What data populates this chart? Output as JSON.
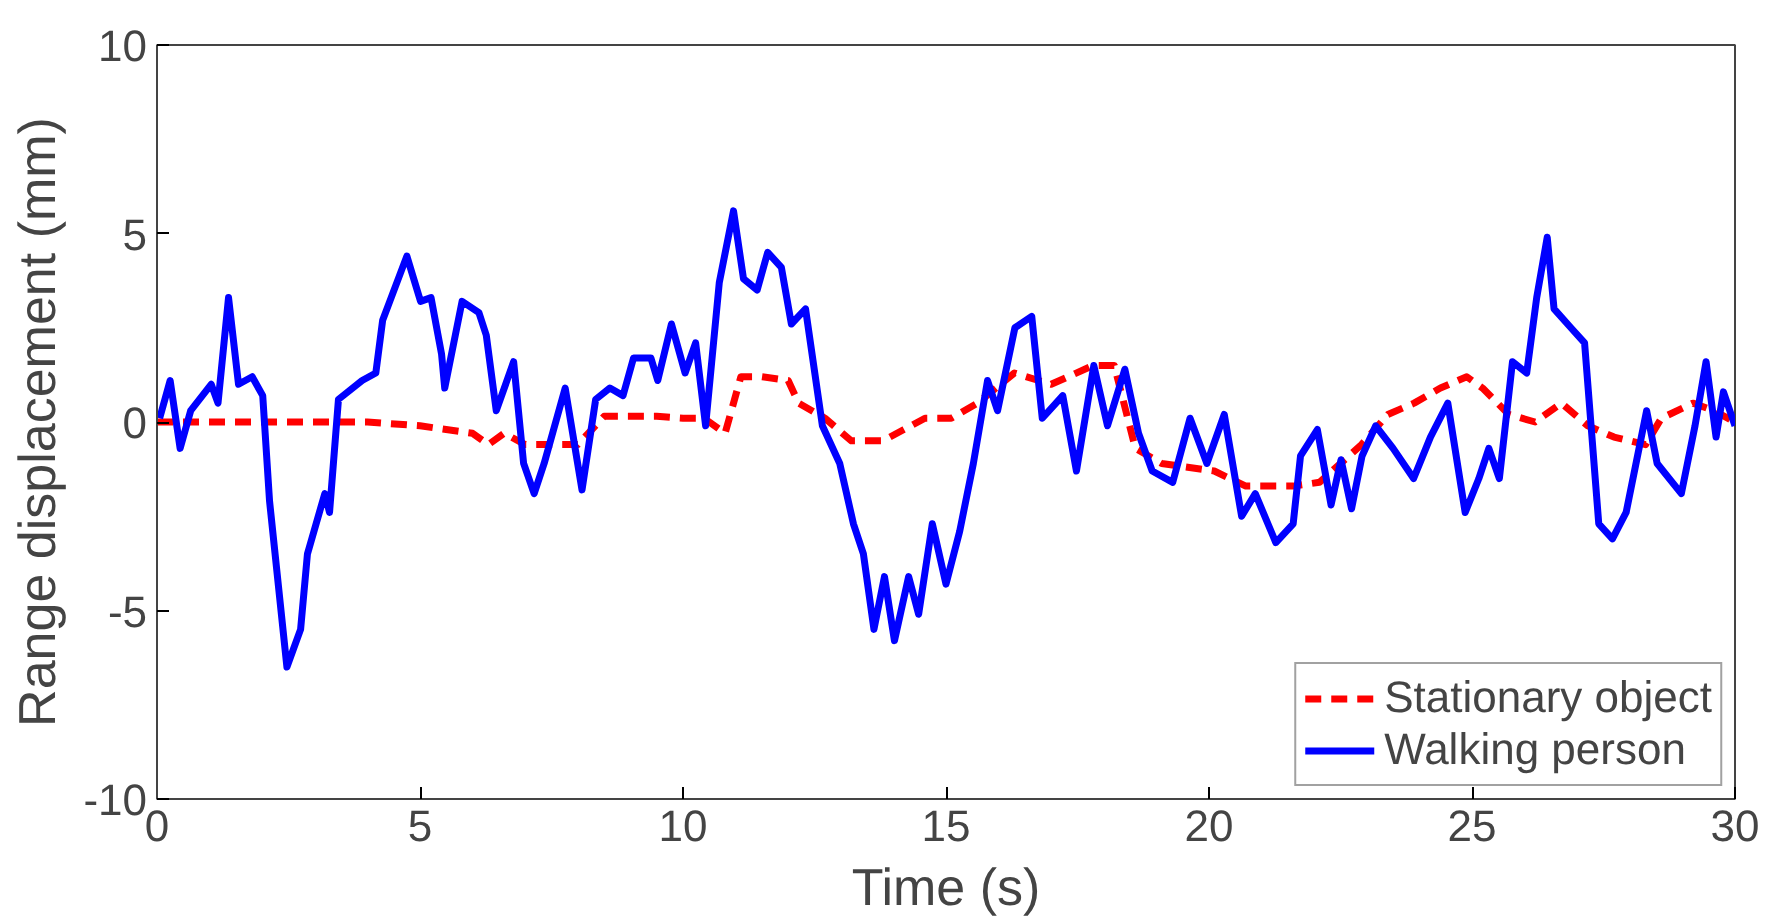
{
  "chart_data": {
    "type": "line",
    "xlabel": "Time (s)",
    "ylabel": "Range displacement (mm)",
    "xlim": [
      0,
      30
    ],
    "ylim": [
      -10,
      10
    ],
    "xticks": [
      0,
      5,
      10,
      15,
      20,
      25,
      30
    ],
    "yticks": [
      -10,
      -5,
      0,
      5,
      10
    ],
    "grid": false,
    "legend": "bottom right",
    "series": [
      {
        "name": "Stationary object",
        "color": "#ff0000",
        "line_style": "dashed",
        "x": [
          0,
          1,
          2,
          3,
          4,
          5,
          6,
          6.3,
          6.6,
          7,
          7.5,
          8,
          8.5,
          9,
          9.5,
          10,
          10.4,
          10.8,
          11.1,
          11.5,
          12.0,
          12.2,
          12.7,
          13.2,
          13.8,
          14.2,
          14.6,
          15.1,
          15.6,
          16.3,
          17.0,
          17.8,
          18.2,
          18.6,
          19.1,
          20.1,
          20.7,
          21.6,
          22.1,
          22.9,
          23.4,
          23.9,
          24.4,
          24.9,
          25.2,
          25.7,
          26.2,
          26.7,
          27.2,
          27.7,
          28.3,
          28.6,
          29.2,
          29.6,
          30
        ],
        "values": [
          0,
          0,
          0,
          0,
          0,
          -0.1,
          -0.3,
          -0.6,
          -0.3,
          -0.6,
          -0.6,
          -0.6,
          0.15,
          0.15,
          0.15,
          0.1,
          0.1,
          -0.3,
          1.2,
          1.2,
          1.1,
          0.5,
          0.1,
          -0.5,
          -0.5,
          -0.2,
          0.1,
          0.1,
          0.5,
          1.3,
          1.0,
          1.5,
          1.5,
          -0.7,
          -1.1,
          -1.3,
          -1.7,
          -1.7,
          -1.6,
          -0.6,
          0.2,
          0.5,
          0.9,
          1.2,
          0.9,
          0.2,
          0,
          0.5,
          -0.1,
          -0.4,
          -0.6,
          0.1,
          0.5,
          0.3,
          0
        ]
      },
      {
        "name": "Walking person",
        "color": "#0000ff",
        "line_style": "solid",
        "x": [
          0.05,
          0.25,
          0.44,
          0.64,
          1.03,
          1.16,
          1.36,
          1.55,
          1.81,
          2.01,
          2.14,
          2.47,
          2.73,
          2.86,
          3.19,
          3.28,
          3.45,
          3.9,
          4.16,
          4.29,
          4.75,
          5.01,
          5.21,
          5.41,
          5.47,
          5.8,
          6.12,
          6.26,
          6.45,
          6.78,
          6.97,
          7.17,
          7.36,
          7.76,
          8.08,
          8.34,
          8.61,
          8.86,
          9.06,
          9.39,
          9.52,
          9.78,
          10.04,
          10.24,
          10.43,
          10.69,
          10.96,
          11.15,
          11.41,
          11.61,
          11.87,
          12.06,
          12.33,
          12.65,
          12.98,
          13.24,
          13.43,
          13.63,
          13.83,
          14.02,
          14.29,
          14.48,
          14.74,
          15.0,
          15.26,
          15.52,
          15.79,
          15.98,
          16.31,
          16.63,
          16.83,
          17.22,
          17.48,
          17.81,
          18.07,
          18.4,
          18.66,
          18.92,
          19.31,
          19.64,
          19.96,
          20.29,
          20.62,
          20.88,
          21.27,
          21.6,
          21.74,
          22.06,
          22.32,
          22.51,
          22.71,
          22.91,
          23.17,
          23.5,
          23.89,
          24.21,
          24.54,
          24.87,
          25.13,
          25.32,
          25.52,
          25.77,
          26.04,
          26.23,
          26.43,
          26.56,
          26.88,
          27.14,
          27.41,
          27.67,
          27.93,
          28.32,
          28.52,
          28.98,
          29.24,
          29.45,
          29.64,
          29.78,
          30
        ],
        "values": [
          0.1,
          1.1,
          -0.7,
          0.3,
          1.0,
          0.5,
          3.3,
          1.0,
          1.2,
          0.7,
          -2.1,
          -6.5,
          -5.5,
          -3.5,
          -1.9,
          -2.4,
          0.6,
          1.1,
          1.3,
          2.7,
          4.4,
          3.2,
          3.3,
          1.8,
          0.9,
          3.2,
          2.9,
          2.3,
          0.3,
          1.6,
          -1.1,
          -1.9,
          -1.1,
          0.9,
          -1.8,
          0.6,
          0.9,
          0.7,
          1.7,
          1.7,
          1.1,
          2.6,
          1.3,
          2.1,
          -0.1,
          3.7,
          5.6,
          3.8,
          3.5,
          4.5,
          4.1,
          2.6,
          3.0,
          -0.1,
          -1.1,
          -2.7,
          -3.5,
          -5.5,
          -4.1,
          -5.8,
          -4.1,
          -5.1,
          -2.7,
          -4.3,
          -2.9,
          -1.1,
          1.1,
          0.3,
          2.5,
          2.8,
          0.1,
          0.7,
          -1.3,
          1.5,
          -0.1,
          1.4,
          -0.3,
          -1.3,
          -1.6,
          0.1,
          -1.1,
          0.2,
          -2.5,
          -1.9,
          -3.2,
          -2.7,
          -0.9,
          -0.2,
          -2.2,
          -1.0,
          -2.3,
          -0.9,
          -0.1,
          -0.7,
          -1.5,
          -0.4,
          0.5,
          -2.4,
          -1.5,
          -0.7,
          -1.5,
          1.6,
          1.3,
          3.3,
          4.9,
          3.0,
          2.5,
          2.1,
          -2.7,
          -3.1,
          -2.4,
          0.3,
          -1.1,
          -1.9,
          -0.1,
          1.6,
          -0.4,
          0.8,
          -0.1
        ]
      }
    ]
  }
}
